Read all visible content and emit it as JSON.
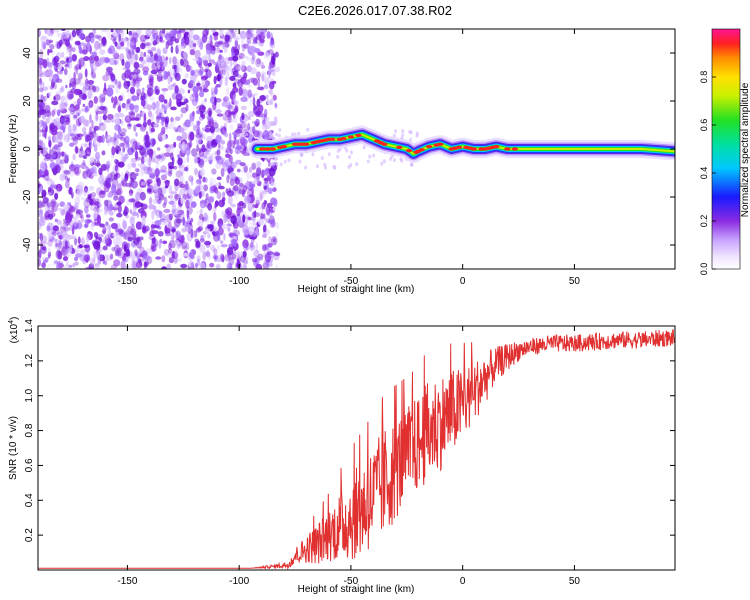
{
  "title": "C2E6.2026.017.07.38.R02",
  "chart_data": [
    {
      "type": "heatmap",
      "title": "C2E6.2026.017.07.38.R02",
      "xlabel": "Height of straight line (km)",
      "ylabel": "Frequency (Hz)",
      "xlim": [
        -190,
        95
      ],
      "ylim": [
        -50,
        50
      ],
      "xticks": [
        -150,
        -100,
        -50,
        0,
        50
      ],
      "xtick_labels": [
        "-150",
        "-100",
        "-50",
        "0",
        "50"
      ],
      "yticks": [
        -40,
        -20,
        0,
        20,
        40
      ],
      "ytick_labels": [
        "-40",
        "-20",
        "0",
        "20",
        "40"
      ],
      "noise_region_x": [
        -190,
        -83
      ],
      "signal_start_x": -92,
      "ridge_x": [
        -92,
        -85,
        -80,
        -75,
        -70,
        -65,
        -60,
        -55,
        -50,
        -45,
        -40,
        -35,
        -30,
        -25,
        -22,
        -20,
        -15,
        -10,
        -5,
        0,
        5,
        10,
        15,
        20,
        30,
        40,
        50,
        60,
        70,
        80,
        95
      ],
      "ridge_freq": [
        0,
        0,
        1,
        2,
        2,
        3,
        4,
        4,
        5,
        6,
        4,
        2,
        1,
        0,
        -2,
        -1,
        1,
        2,
        0,
        1,
        0,
        0,
        1,
        0,
        0,
        0,
        0,
        0,
        0,
        0,
        -1
      ],
      "colorbar": {
        "label": "Normalized spectral amplitude",
        "range": [
          0,
          1
        ],
        "ticks": [
          0,
          0.2,
          0.4,
          0.6,
          0.8
        ],
        "tick_labels": [
          "0.0",
          "0.2",
          "0.4",
          "0.6",
          "0.8"
        ]
      }
    },
    {
      "type": "line",
      "xlabel": "Height of straight line (km)",
      "ylabel": "SNR (10 * v/v)",
      "y_multiplier": "(x10",
      "y_multiplier_exp": "4",
      "series_color": "#e03030",
      "xlim": [
        -190,
        95
      ],
      "ylim": [
        0,
        1.4
      ],
      "xticks": [
        -150,
        -100,
        -50,
        0,
        50
      ],
      "xtick_labels": [
        "-150",
        "-100",
        "-50",
        "0",
        "50"
      ],
      "yticks": [
        0.2,
        0.4,
        0.6,
        0.8,
        1.0,
        1.2,
        1.4
      ],
      "ytick_labels": [
        "0.2",
        "0.4",
        "0.6",
        "0.8",
        "1.0",
        "1.2",
        "1.4"
      ],
      "series": [
        {
          "name": "SNR",
          "x": [
            -190,
            -170,
            -150,
            -130,
            -110,
            -95,
            -85,
            -78,
            -75,
            -70,
            -65,
            -60,
            -55,
            -50,
            -45,
            -40,
            -35,
            -30,
            -25,
            -20,
            -15,
            -10,
            -5,
            0,
            5,
            10,
            15,
            20,
            25,
            30,
            40,
            50,
            60,
            70,
            80,
            90,
            95
          ],
          "values": [
            0.01,
            0.01,
            0.01,
            0.01,
            0.01,
            0.01,
            0.02,
            0.03,
            0.08,
            0.12,
            0.15,
            0.2,
            0.25,
            0.3,
            0.35,
            0.42,
            0.5,
            0.58,
            0.66,
            0.72,
            0.8,
            0.85,
            0.9,
            0.95,
            1.02,
            1.1,
            1.18,
            1.22,
            1.26,
            1.28,
            1.3,
            1.3,
            1.31,
            1.32,
            1.32,
            1.33,
            1.33
          ],
          "noise_amplitude": [
            0,
            0,
            0,
            0,
            0,
            0,
            0.01,
            0.02,
            0.05,
            0.08,
            0.12,
            0.15,
            0.2,
            0.25,
            0.28,
            0.3,
            0.32,
            0.3,
            0.28,
            0.28,
            0.3,
            0.28,
            0.25,
            0.22,
            0.18,
            0.15,
            0.1,
            0.08,
            0.06,
            0.05,
            0.05,
            0.05,
            0.05,
            0.05,
            0.05,
            0.05,
            0.05
          ]
        }
      ]
    }
  ]
}
